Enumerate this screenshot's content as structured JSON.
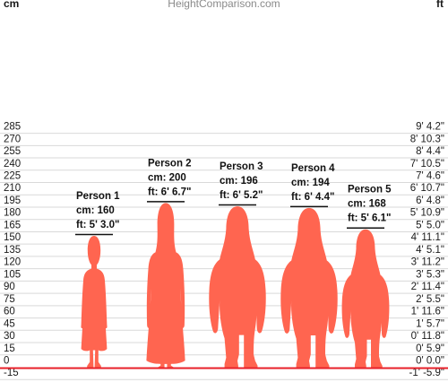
{
  "header": {
    "site": "HeightComparison.com",
    "left_unit": "cm",
    "right_unit": "ft"
  },
  "chart_data": {
    "type": "bar",
    "title": "",
    "xlabel": "",
    "ylabel": "cm",
    "ylim": [
      -15,
      300
    ],
    "grid": true,
    "y_ticks_cm": [
      285,
      270,
      255,
      240,
      225,
      210,
      195,
      180,
      165,
      150,
      135,
      120,
      105,
      90,
      75,
      60,
      45,
      30,
      15,
      0,
      -15
    ],
    "y_ticks_ft": [
      "9' 4.2\"",
      "8' 10.3\"",
      "8' 4.4\"",
      "7' 10.5\"",
      "7' 4.6\"",
      "6' 10.7\"",
      "6' 4.8\"",
      "5' 10.9\"",
      "5' 5.0\"",
      "4' 11.1\"",
      "4' 5.1\"",
      "3' 11.2\"",
      "3' 5.3\"",
      "2' 11.4\"",
      "2' 5.5\"",
      "1' 11.6\"",
      "1' 5.7\"",
      "0' 11.8\"",
      "0' 5.9\"",
      "0' 0.0\"",
      "-1' -5.9\""
    ],
    "categories": [
      "Person 1",
      "Person 2",
      "Person 3",
      "Person 4",
      "Person 5"
    ],
    "values": [
      160,
      200,
      196,
      194,
      168
    ],
    "series": [
      {
        "values": [
          160,
          200,
          196,
          194,
          168
        ],
        "labels": [
          {
            "name": "Person 1",
            "cm": "cm: 160",
            "ft": "ft: 5' 3.0\""
          },
          {
            "name": "Person 2",
            "cm": "cm: 200",
            "ft": "ft: 6' 6.7\""
          },
          {
            "name": "Person 3",
            "cm": "cm: 196",
            "ft": "ft: 6' 5.2\""
          },
          {
            "name": "Person 4",
            "cm": "cm: 194",
            "ft": "ft: 6' 4.4\""
          },
          {
            "name": "Person 5",
            "cm": "cm: 168",
            "ft": "ft: 5' 6.1\""
          }
        ]
      }
    ],
    "figure_shapes": [
      "child-dress",
      "long-dress",
      "sweater-pants",
      "sweater-pants",
      "sweater-pants"
    ],
    "colors": {
      "figure": "#FF6550",
      "baseline": "#E8202A",
      "grid": "#D9D9D9"
    }
  }
}
